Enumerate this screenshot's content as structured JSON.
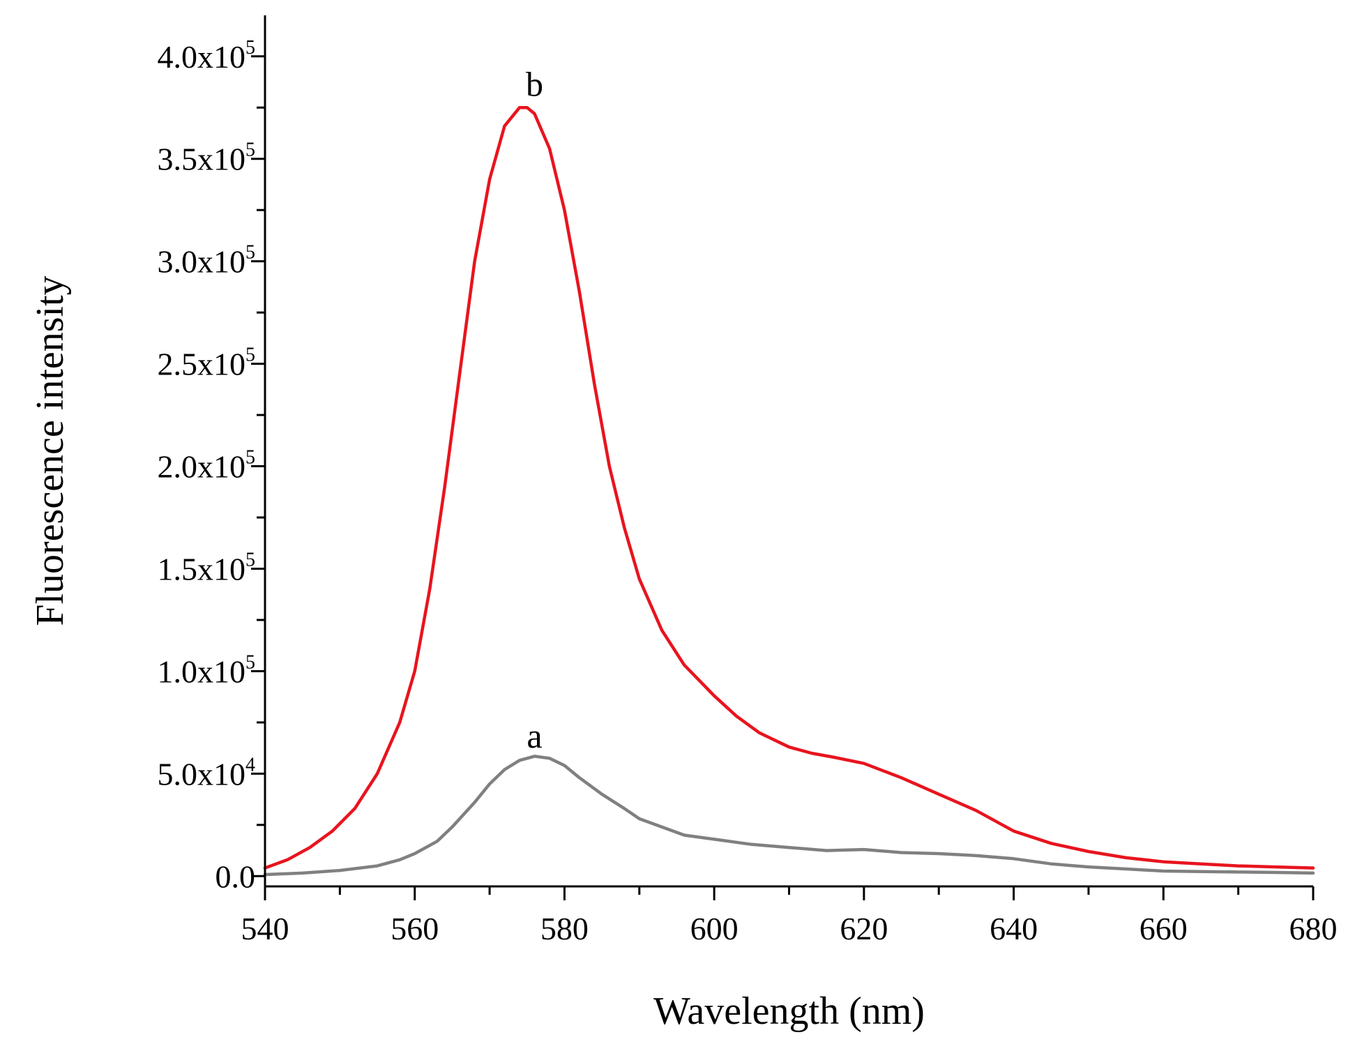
{
  "chart_data": {
    "type": "line",
    "title": "",
    "xlabel": "Wavelength (nm)",
    "ylabel": "Fluorescence intensity",
    "xlim": [
      540,
      680
    ],
    "ylim": [
      -5000,
      420000
    ],
    "grid": false,
    "legend": "none",
    "x_ticks": [
      {
        "value": 540,
        "label": "540"
      },
      {
        "value": 560,
        "label": "560"
      },
      {
        "value": 580,
        "label": "580"
      },
      {
        "value": 600,
        "label": "600"
      },
      {
        "value": 620,
        "label": "620"
      },
      {
        "value": 640,
        "label": "640"
      },
      {
        "value": 660,
        "label": "660"
      },
      {
        "value": 680,
        "label": "680"
      }
    ],
    "y_ticks": [
      {
        "value": 0,
        "mantissa": "0.0",
        "exp": ""
      },
      {
        "value": 50000,
        "mantissa": "5.0x10",
        "exp": "4"
      },
      {
        "value": 100000,
        "mantissa": "1.0x10",
        "exp": "5"
      },
      {
        "value": 150000,
        "mantissa": "1.5x10",
        "exp": "5"
      },
      {
        "value": 200000,
        "mantissa": "2.0x10",
        "exp": "5"
      },
      {
        "value": 250000,
        "mantissa": "2.5x10",
        "exp": "5"
      },
      {
        "value": 300000,
        "mantissa": "3.0x10",
        "exp": "5"
      },
      {
        "value": 350000,
        "mantissa": "3.5x10",
        "exp": "5"
      },
      {
        "value": 400000,
        "mantissa": "4.0x10",
        "exp": "5"
      }
    ],
    "series": [
      {
        "name": "a",
        "color": "#808080",
        "label_at": [
          576,
          60000
        ],
        "x": [
          540,
          545,
          550,
          555,
          558,
          560,
          563,
          565,
          568,
          570,
          572,
          574,
          576,
          578,
          580,
          582,
          585,
          588,
          590,
          593,
          596,
          600,
          605,
          610,
          615,
          620,
          625,
          630,
          635,
          640,
          645,
          650,
          655,
          660,
          665,
          670,
          675,
          680
        ],
        "y": [
          800,
          1500,
          2800,
          5000,
          8000,
          11000,
          17000,
          24000,
          36000,
          45000,
          52000,
          56500,
          58500,
          57500,
          54000,
          48000,
          40000,
          33000,
          28000,
          24000,
          20000,
          18000,
          15500,
          14000,
          12500,
          13000,
          11500,
          11000,
          10000,
          8500,
          6000,
          4500,
          3500,
          2500,
          2200,
          2000,
          1800,
          1500
        ]
      },
      {
        "name": "b",
        "color": "#e8141e",
        "label_at": [
          576,
          378000
        ],
        "x": [
          540,
          543,
          546,
          549,
          552,
          555,
          558,
          560,
          562,
          564,
          566,
          568,
          570,
          572,
          574,
          575,
          576,
          578,
          580,
          582,
          584,
          586,
          588,
          590,
          593,
          596,
          600,
          603,
          606,
          610,
          613,
          616,
          620,
          625,
          630,
          635,
          640,
          645,
          650,
          655,
          660,
          665,
          670,
          675,
          680
        ],
        "y": [
          4000,
          8000,
          14000,
          22000,
          33000,
          50000,
          75000,
          100000,
          140000,
          190000,
          245000,
          300000,
          340000,
          366000,
          375000,
          375000,
          372000,
          355000,
          325000,
          285000,
          240000,
          200000,
          170000,
          145000,
          120000,
          103000,
          88000,
          78000,
          70000,
          63000,
          60000,
          58000,
          55000,
          48000,
          40000,
          32000,
          22000,
          16000,
          12000,
          9000,
          7000,
          6000,
          5000,
          4500,
          4000
        ]
      }
    ]
  }
}
